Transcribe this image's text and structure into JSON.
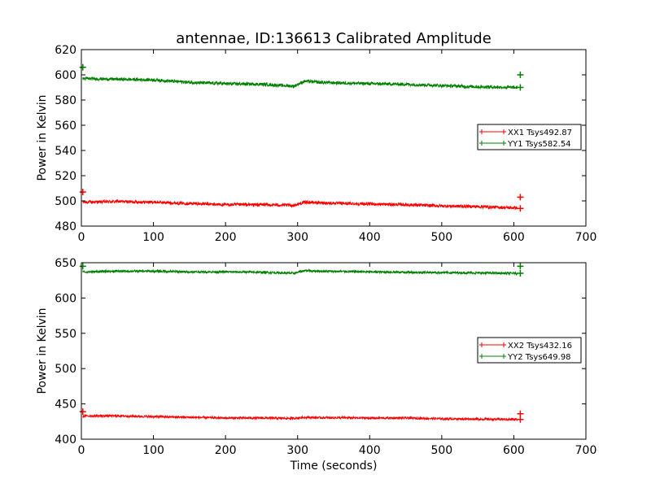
{
  "title": "antennae, ID:136613 Calibrated Amplitude",
  "chart_data": [
    {
      "type": "line",
      "title": "antennae, ID:136613 Calibrated Amplitude",
      "xlabel": "",
      "ylabel": "Power in Kelvin",
      "xlim": [
        0,
        700
      ],
      "ylim": [
        480,
        620
      ],
      "xticks": [
        "0",
        "100",
        "200",
        "300",
        "400",
        "500",
        "600",
        "700"
      ],
      "yticks": [
        "480",
        "500",
        "520",
        "540",
        "560",
        "580",
        "600",
        "620"
      ],
      "legend_position": "right",
      "grid": false,
      "series": [
        {
          "name": "XX1 Tsys492.87",
          "color": "#ff0000",
          "noise": 1.2,
          "x": [
            2,
            5,
            50,
            100,
            150,
            200,
            250,
            295,
            310,
            330,
            400,
            450,
            500,
            550,
            600,
            605
          ],
          "y": [
            499,
            499,
            499.5,
            499,
            498,
            497,
            497,
            496.5,
            499,
            498.5,
            497.5,
            497,
            496,
            495.5,
            494.5,
            494.5
          ],
          "markers": [
            [
              2,
              507
            ],
            [
              609,
              503
            ],
            [
              609,
              494
            ]
          ]
        },
        {
          "name": "YY1 Tsys582.54",
          "color": "#008000",
          "noise": 1.2,
          "x": [
            2,
            5,
            50,
            100,
            150,
            200,
            250,
            295,
            310,
            330,
            400,
            450,
            500,
            550,
            600,
            605
          ],
          "y": [
            597,
            597,
            596.5,
            596,
            594,
            593,
            592.5,
            591,
            595,
            594,
            593,
            592.5,
            591.5,
            590.5,
            590,
            590
          ],
          "markers": [
            [
              2,
              606
            ],
            [
              609,
              600
            ],
            [
              609,
              590
            ]
          ]
        }
      ]
    },
    {
      "type": "line",
      "title": "",
      "xlabel": "Time (seconds)",
      "ylabel": "Power in Kelvin",
      "xlim": [
        0,
        700
      ],
      "ylim": [
        400,
        650
      ],
      "xticks": [
        "0",
        "100",
        "200",
        "300",
        "400",
        "500",
        "600",
        "700"
      ],
      "yticks": [
        "400",
        "450",
        "500",
        "550",
        "600",
        "650"
      ],
      "legend_position": "right",
      "grid": false,
      "series": [
        {
          "name": "XX2 Tsys432.16",
          "color": "#ff0000",
          "noise": 1.5,
          "x": [
            2,
            5,
            50,
            100,
            150,
            200,
            250,
            295,
            310,
            330,
            400,
            450,
            500,
            550,
            600,
            605
          ],
          "y": [
            432,
            433,
            433,
            432,
            431,
            430,
            430,
            429.5,
            431,
            430.5,
            430,
            430,
            429,
            428.5,
            428,
            428
          ],
          "markers": [
            [
              2,
              439
            ],
            [
              609,
              436
            ],
            [
              609,
              428
            ]
          ]
        },
        {
          "name": "YY2 Tsys649.98",
          "color": "#008000",
          "noise": 1.5,
          "x": [
            2,
            5,
            50,
            100,
            150,
            200,
            250,
            295,
            310,
            330,
            400,
            450,
            500,
            550,
            600,
            605
          ],
          "y": [
            638,
            637,
            638,
            638,
            637,
            637,
            636.5,
            635,
            639,
            638,
            637,
            636.5,
            636,
            635.5,
            635,
            635
          ],
          "markers": [
            [
              2,
              645
            ],
            [
              609,
              645
            ],
            [
              609,
              635
            ]
          ]
        }
      ]
    }
  ]
}
